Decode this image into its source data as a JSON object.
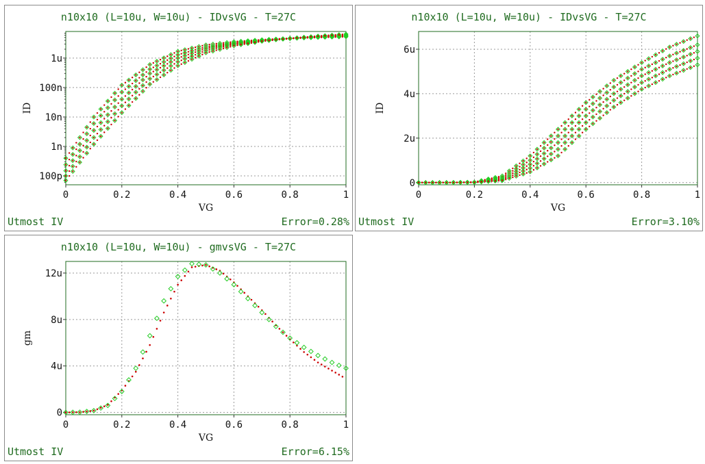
{
  "colors": {
    "frame": "#1f6b1f",
    "measured": "#22cc22",
    "simulated": "#cc0000",
    "grid": "#999999",
    "text": "#1f6b1f"
  },
  "panels": [
    {
      "id": "p1",
      "title": "n10x10 (L=10u, W=10u) - IDvsVG - T=27C",
      "left_label": "Utmost IV",
      "right_label": "Error=0.28%",
      "chart_data": {
        "type": "scatter",
        "xlabel": "VG",
        "ylabel": "ID",
        "xlim": [
          0,
          1
        ],
        "yscale": "log",
        "ylim": [
          5e-11,
          8e-06
        ],
        "x_ticks": [
          0,
          0.2,
          0.4,
          0.6,
          0.8,
          1
        ],
        "x_tick_labels": [
          "0",
          "0.2",
          "0.4",
          "0.6",
          "0.8",
          "1"
        ],
        "y_ticks": [
          1e-10,
          1e-09,
          1e-08,
          1e-07,
          1e-06
        ],
        "y_tick_labels": [
          "100p",
          "1n",
          "10n",
          "100n",
          "1u"
        ],
        "grid": true,
        "x": [
          0,
          0.1,
          0.2,
          0.3,
          0.4,
          0.5,
          0.6,
          0.7,
          0.8,
          0.9,
          1
        ],
        "series": [
          {
            "values": [
              4e-10,
              1e-08,
              1.2e-07,
              6e-07,
              1.7e-06,
              2.8e-06,
              3.6e-06,
              4.2e-06,
              4.7e-06,
              5e-06,
              5.3e-06
            ]
          },
          {
            "values": [
              2.4e-10,
              6e-09,
              7e-08,
              4.2e-07,
              1.3e-06,
              2.4e-06,
              3.3e-06,
              4e-06,
              4.6e-06,
              5.1e-06,
              5.5e-06
            ]
          },
          {
            "values": [
              1.5e-10,
              3.5e-09,
              4e-08,
              3e-07,
              1e-06,
              2.1e-06,
              3.1e-06,
              3.9e-06,
              4.6e-06,
              5.2e-06,
              5.8e-06
            ]
          },
          {
            "values": [
              1e-10,
              2e-09,
              2.4e-08,
              2e-07,
              7.5e-07,
              1.8e-06,
              2.9e-06,
              3.8e-06,
              4.6e-06,
              5.4e-06,
              6.1e-06
            ]
          },
          {
            "values": [
              7e-11,
              1.2e-09,
              1.4e-08,
              1.3e-07,
              5.5e-07,
              1.5e-06,
              2.6e-06,
              3.7e-06,
              4.7e-06,
              5.6e-06,
              6.5e-06
            ]
          }
        ]
      }
    },
    {
      "id": "p2",
      "title": "n10x10 (L=10u, W=10u) - IDvsVG - T=27C",
      "left_label": "Utmost IV",
      "right_label": "Error=3.10%",
      "chart_data": {
        "type": "scatter",
        "xlabel": "VG",
        "ylabel": "ID",
        "xlim": [
          0,
          1
        ],
        "ylim": [
          -1e-07,
          6.8e-06
        ],
        "x_ticks": [
          0,
          0.2,
          0.4,
          0.6,
          0.8,
          1
        ],
        "x_tick_labels": [
          "0",
          "0.2",
          "0.4",
          "0.6",
          "0.8",
          "1"
        ],
        "y_ticks": [
          0,
          2e-06,
          4e-06,
          6e-06
        ],
        "y_tick_labels": [
          "0",
          "2u",
          "4u",
          "6u"
        ],
        "grid": true,
        "x": [
          0,
          0.1,
          0.2,
          0.3,
          0.4,
          0.5,
          0.6,
          0.7,
          0.8,
          0.9,
          1
        ],
        "series": [
          {
            "values": [
              0,
              0,
              2e-08,
              3e-07,
              1.2e-06,
              2.4e-06,
              3.6e-06,
              4.6e-06,
              5.4e-06,
              6.1e-06,
              6.6e-06
            ]
          },
          {
            "values": [
              0,
              0,
              1.6e-08,
              2.4e-07,
              1e-06,
              2.1e-06,
              3.3e-06,
              4.3e-06,
              5.1e-06,
              5.7e-06,
              6.2e-06
            ]
          },
          {
            "values": [
              0,
              0,
              1.2e-08,
              1.8e-07,
              8.2e-07,
              1.8e-06,
              3e-06,
              4e-06,
              4.8e-06,
              5.4e-06,
              5.9e-06
            ]
          },
          {
            "values": [
              0,
              0,
              9e-09,
              1.3e-07,
              6.5e-07,
              1.5e-06,
              2.7e-06,
              3.7e-06,
              4.5e-06,
              5.1e-06,
              5.6e-06
            ]
          },
          {
            "values": [
              0,
              0,
              6e-09,
              9e-08,
              4.8e-07,
              1.2e-06,
              2.4e-06,
              3.4e-06,
              4.2e-06,
              4.8e-06,
              5.3e-06
            ]
          }
        ]
      }
    },
    {
      "id": "p3",
      "title": "n10x10 (L=10u, W=10u) - gmvsVG - T=27C",
      "left_label": "Utmost IV",
      "right_label": "Error=6.15%",
      "chart_data": {
        "type": "scatter",
        "xlabel": "VG",
        "ylabel": "gm",
        "xlim": [
          0,
          1
        ],
        "ylim": [
          -2e-07,
          1.3e-05
        ],
        "x_ticks": [
          0,
          0.2,
          0.4,
          0.6,
          0.8,
          1
        ],
        "x_tick_labels": [
          "0",
          "0.2",
          "0.4",
          "0.6",
          "0.8",
          "1"
        ],
        "y_ticks": [
          0,
          4e-06,
          8e-06,
          1.2e-05
        ],
        "y_tick_labels": [
          "0",
          "4u",
          "8u",
          "12u"
        ],
        "grid": true,
        "x": [
          0,
          0.05,
          0.1,
          0.15,
          0.2,
          0.25,
          0.3,
          0.35,
          0.4,
          0.45,
          0.5,
          0.55,
          0.6,
          0.65,
          0.7,
          0.75,
          0.8,
          0.85,
          0.9,
          0.95,
          1
        ],
        "series": [
          {
            "values": [
              0,
              2e-08,
              1.5e-07,
              6e-07,
              1.8e-06,
              3.8e-06,
              6.6e-06,
              9.6e-06,
              1.17e-05,
              1.28e-05,
              1.27e-05,
              1.2e-05,
              1.1e-05,
              9.8e-06,
              8.6e-06,
              7.4e-06,
              6.4e-06,
              5.6e-06,
              4.9e-06,
              4.3e-06,
              3.8e-06
            ]
          },
          {
            "values": [
              0,
              2e-08,
              1.5e-07,
              6.5e-07,
              1.9e-06,
              3.5e-06,
              5.8e-06,
              8.6e-06,
              1.1e-05,
              1.25e-05,
              1.27e-05,
              1.22e-05,
              1.12e-05,
              1e-05,
              8.8e-06,
              7.5e-06,
              6.3e-06,
              5.2e-06,
              4.3e-06,
              3.6e-06,
              2.9e-06
            ]
          }
        ]
      }
    }
  ]
}
